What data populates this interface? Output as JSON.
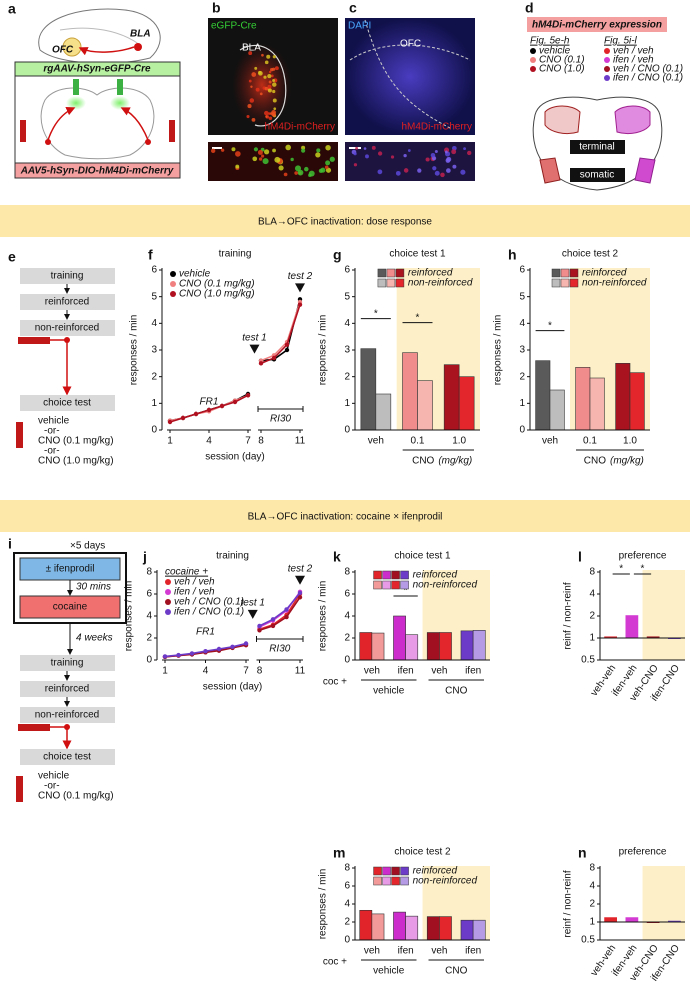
{
  "figure": {
    "a": {
      "label": "a",
      "regions": [
        "OFC",
        "BLA"
      ],
      "top_virus": "rgAAV-hSyn-eGFP-Cre",
      "bottom_virus": "AAV5-hSyn-DIO-hM4Di-mCherry"
    },
    "b": {
      "label": "b",
      "channel": "eGFP-Cre",
      "region": "BLA",
      "stain": "hM4Di-mCherry"
    },
    "c": {
      "label": "c",
      "channel": "DAPI",
      "region": "OFC",
      "stain": "hM4Di-mCherry"
    },
    "d": {
      "label": "d",
      "title": "hM4Di-mCherry expression",
      "groups": [
        {
          "heading": "Fig. 5e-h",
          "items": [
            {
              "name": "vehicle",
              "color": "#000000"
            },
            {
              "name": "CNO (0.1)",
              "color": "#f08080"
            },
            {
              "name": "CNO (1.0)",
              "color": "#b01020"
            }
          ]
        },
        {
          "heading": "Fig. 5i-l",
          "items": [
            {
              "name": "veh / veh",
              "color": "#e0242a"
            },
            {
              "name": "ifen / veh",
              "color": "#d33ad2"
            },
            {
              "name": "veh / CNO (0.1)",
              "color": "#a01020"
            },
            {
              "name": "ifen / CNO (0.1)",
              "color": "#6c3bc8"
            }
          ]
        }
      ],
      "sites": [
        "terminal",
        "somatic"
      ]
    },
    "banners": [
      "BLA→OFC inactivation: dose response",
      "BLA→OFC inactivation: cocaine × ifenprodil"
    ],
    "e": {
      "label": "e",
      "steps": [
        "training",
        "reinforced",
        "non-reinforced",
        "choice test"
      ],
      "treatments": [
        "vehicle",
        "-or-",
        "CNO (0.1 mg/kg)",
        "-or-",
        "CNO (1.0 mg/kg)"
      ]
    },
    "i": {
      "label": "i",
      "repeat": "×5 days",
      "pretreatment": "± ifenprodil",
      "delay": "30 mins",
      "drug": "cocaine",
      "abstinence": "4 weeks",
      "steps": [
        "training",
        "reinforced",
        "non-reinforced",
        "choice test"
      ],
      "treatments": [
        "vehicle",
        "-or-",
        "CNO (0.1 mg/kg)"
      ]
    }
  },
  "chart_data": [
    {
      "panel": "f",
      "type": "line",
      "title": "training",
      "ylabel": "responses / min",
      "xlabel": "session (day)",
      "xlim": [
        1,
        11
      ],
      "ylim": [
        0,
        6
      ],
      "yticks": [
        0,
        1,
        2,
        3,
        4,
        5,
        6
      ],
      "xticks": [
        1,
        4,
        7,
        8,
        11
      ],
      "phases": [
        {
          "label": "FR1",
          "x": [
            1,
            2,
            3,
            4,
            5,
            6,
            7
          ]
        },
        {
          "label": "RI30",
          "x": [
            8,
            9,
            10,
            11
          ]
        }
      ],
      "tests": [
        "test 1",
        "test 2"
      ],
      "series": [
        {
          "name": "vehicle",
          "color": "#000000",
          "values": [
            [
              0.35,
              0.45,
              0.6,
              0.75,
              0.9,
              1.1,
              1.35
            ],
            [
              2.6,
              2.65,
              3.0,
              4.9
            ]
          ]
        },
        {
          "name": "CNO (0.1 mg/kg)",
          "color": "#f08080",
          "values": [
            [
              0.35,
              0.45,
              0.6,
              0.7,
              0.9,
              1.1,
              1.3
            ],
            [
              2.6,
              2.8,
              3.3,
              4.8
            ]
          ]
        },
        {
          "name": "CNO (1.0 mg/kg)",
          "color": "#b01020",
          "values": [
            [
              0.3,
              0.45,
              0.6,
              0.75,
              0.9,
              1.05,
              1.3
            ],
            [
              2.5,
              2.7,
              3.2,
              4.7
            ]
          ]
        }
      ]
    },
    {
      "panel": "g",
      "type": "grouped_bar",
      "title": "choice test 1",
      "ylabel": "responses / min",
      "categories": [
        "veh",
        "0.1",
        "1.0"
      ],
      "ylim": [
        0,
        6
      ],
      "yticks": [
        0,
        1,
        2,
        3,
        4,
        5,
        6
      ],
      "groups": [
        {
          "label": "CNO",
          "unit": "(mg/kg)",
          "categories": [
            1,
            2
          ]
        }
      ],
      "shaded_categories": [
        1,
        2
      ],
      "series": [
        {
          "name": "reinforced",
          "colors": [
            "#5a5a5a",
            "#f08c8c",
            "#a8131f"
          ],
          "values": [
            3.05,
            2.9,
            2.45
          ]
        },
        {
          "name": "non-reinforced",
          "colors": [
            "#bdbdbd",
            "#f7b5b0",
            "#e2262b"
          ],
          "values": [
            1.35,
            1.85,
            2.0
          ]
        }
      ],
      "significance": [
        {
          "label": "*",
          "categories": [
            0
          ]
        },
        {
          "label": "*",
          "categories": [
            1
          ]
        }
      ]
    },
    {
      "panel": "h",
      "type": "grouped_bar",
      "title": "choice test 2",
      "ylabel": "responses / min",
      "categories": [
        "veh",
        "0.1",
        "1.0"
      ],
      "ylim": [
        0,
        6
      ],
      "yticks": [
        0,
        1,
        2,
        3,
        4,
        5,
        6
      ],
      "groups": [
        {
          "label": "CNO",
          "unit": "(mg/kg)",
          "categories": [
            1,
            2
          ]
        }
      ],
      "shaded_categories": [
        1,
        2
      ],
      "series": [
        {
          "name": "reinforced",
          "colors": [
            "#5a5a5a",
            "#f08c8c",
            "#a8131f"
          ],
          "values": [
            2.6,
            2.35,
            2.5
          ]
        },
        {
          "name": "non-reinforced",
          "colors": [
            "#bdbdbd",
            "#f7b5b0",
            "#e2262b"
          ],
          "values": [
            1.5,
            1.95,
            2.15
          ]
        }
      ],
      "significance": [
        {
          "label": "*",
          "categories": [
            0
          ]
        }
      ]
    },
    {
      "panel": "j",
      "type": "line",
      "title": "training",
      "ylabel": "responses / min",
      "xlabel": "session (day)",
      "xlim": [
        1,
        11
      ],
      "ylim": [
        0,
        8
      ],
      "yticks": [
        0,
        2,
        4,
        6,
        8
      ],
      "xticks": [
        1,
        4,
        7,
        8,
        11
      ],
      "phases": [
        {
          "label": "FR1",
          "x": [
            1,
            2,
            3,
            4,
            5,
            6,
            7
          ]
        },
        {
          "label": "RI30",
          "x": [
            8,
            9,
            10,
            11
          ]
        }
      ],
      "tests": [
        "test 1",
        "test 2"
      ],
      "legend_title": "cocaine +",
      "series": [
        {
          "name": "veh / veh",
          "color": "#e0242a",
          "values": [
            [
              0.3,
              0.4,
              0.55,
              0.7,
              0.9,
              1.15,
              1.45
            ],
            [
              2.8,
              3.2,
              4.1,
              6.0
            ]
          ]
        },
        {
          "name": "ifen / veh",
          "color": "#d33ad2",
          "values": [
            [
              0.3,
              0.42,
              0.55,
              0.75,
              0.95,
              1.15,
              1.45
            ],
            [
              3.0,
              3.6,
              4.5,
              6.2
            ]
          ]
        },
        {
          "name": "veh / CNO (0.1)",
          "color": "#a01020",
          "values": [
            [
              0.28,
              0.4,
              0.5,
              0.7,
              0.85,
              1.1,
              1.35
            ],
            [
              2.7,
              3.1,
              3.9,
              5.7
            ]
          ]
        },
        {
          "name": "ifen / CNO (0.1)",
          "color": "#6c3bc8",
          "values": [
            [
              0.32,
              0.45,
              0.6,
              0.8,
              1.0,
              1.2,
              1.5
            ],
            [
              3.1,
              3.7,
              4.6,
              6.1
            ]
          ]
        }
      ]
    },
    {
      "panel": "k",
      "type": "grouped_bar",
      "title": "choice test 1",
      "ylabel": "responses / min",
      "categories": [
        "veh",
        "ifen",
        "veh",
        "ifen"
      ],
      "ylim": [
        0,
        8
      ],
      "yticks": [
        0,
        2,
        4,
        6,
        8
      ],
      "group_prefix": "coc +",
      "groups": [
        {
          "label": "vehicle",
          "categories": [
            0,
            1
          ]
        },
        {
          "label": "CNO",
          "categories": [
            2,
            3
          ]
        }
      ],
      "shaded_categories": [
        2,
        3
      ],
      "series": [
        {
          "name": "reinforced",
          "colors": [
            "#e0242a",
            "#cc2ccb",
            "#a01020",
            "#6c3bc8"
          ],
          "values": [
            2.5,
            4.0,
            2.5,
            2.65
          ]
        },
        {
          "name": "non-reinforced",
          "colors": [
            "#f29a9a",
            "#e79ae5",
            "#e2262b",
            "#b59ae6"
          ],
          "values": [
            2.45,
            2.3,
            2.5,
            2.7
          ]
        }
      ],
      "significance": [
        {
          "label": "*",
          "categories": [
            1
          ]
        }
      ]
    },
    {
      "panel": "l",
      "type": "pref_bar",
      "title": "preference",
      "ylabel": "reinf / non-reinf",
      "categories": [
        "veh-veh",
        "ifen-veh",
        "veh-CNO",
        "ifen-CNO"
      ],
      "values": [
        1.05,
        2.05,
        1.05,
        1.0
      ],
      "colors": [
        "#e0242a",
        "#d33ad2",
        "#a01020",
        "#6c3bc8"
      ],
      "log_scale": true,
      "ylim": [
        0.5,
        8
      ],
      "yticks": [
        0.5,
        1,
        2,
        4,
        8
      ],
      "baseline": 1,
      "shaded_categories": [
        2,
        3
      ],
      "significance": [
        {
          "label": "*",
          "categories": [
            0,
            1
          ]
        },
        {
          "label": "*",
          "categories": [
            1,
            2
          ]
        }
      ]
    },
    {
      "panel": "m",
      "type": "grouped_bar",
      "title": "choice test 2",
      "ylabel": "responses / min",
      "categories": [
        "veh",
        "ifen",
        "veh",
        "ifen"
      ],
      "ylim": [
        0,
        8
      ],
      "yticks": [
        0,
        2,
        4,
        6,
        8
      ],
      "group_prefix": "coc +",
      "groups": [
        {
          "label": "vehicle",
          "categories": [
            0,
            1
          ]
        },
        {
          "label": "CNO",
          "categories": [
            2,
            3
          ]
        }
      ],
      "shaded_categories": [
        2,
        3
      ],
      "series": [
        {
          "name": "reinforced",
          "colors": [
            "#e0242a",
            "#cc2ccb",
            "#a01020",
            "#6c3bc8"
          ],
          "values": [
            3.3,
            3.1,
            2.6,
            2.2
          ]
        },
        {
          "name": "non-reinforced",
          "colors": [
            "#f29a9a",
            "#e79ae5",
            "#e2262b",
            "#b59ae6"
          ],
          "values": [
            2.9,
            2.65,
            2.6,
            2.2
          ]
        }
      ]
    },
    {
      "panel": "n",
      "type": "pref_bar",
      "title": "preference",
      "ylabel": "reinf / non-reinf",
      "categories": [
        "veh-veh",
        "ifen-veh",
        "veh-CNO",
        "ifen-CNO"
      ],
      "values": [
        1.2,
        1.2,
        1.0,
        1.05
      ],
      "colors": [
        "#e0242a",
        "#d33ad2",
        "#a01020",
        "#6c3bc8"
      ],
      "log_scale": true,
      "ylim": [
        0.5,
        8
      ],
      "yticks": [
        0.5,
        1,
        2,
        4,
        8
      ],
      "baseline": 1,
      "shaded_categories": [
        2,
        3
      ]
    }
  ]
}
